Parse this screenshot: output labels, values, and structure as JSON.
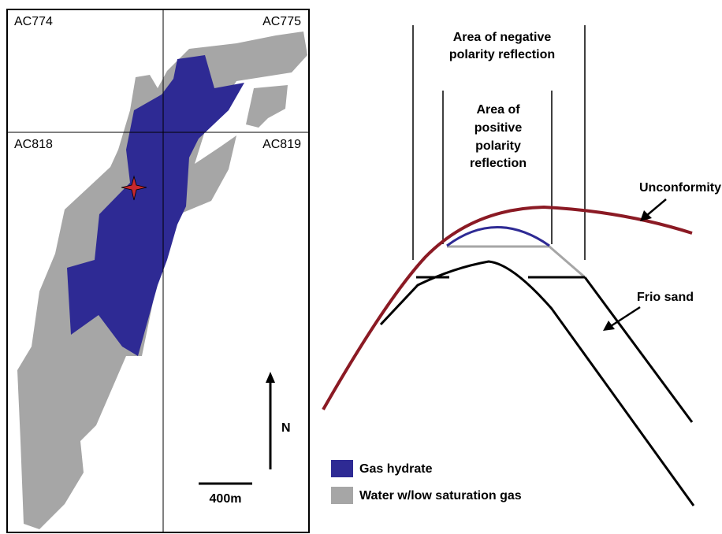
{
  "map": {
    "blocks": [
      "AC774",
      "AC775",
      "AC818",
      "AC819"
    ],
    "north": "N",
    "scale": "400m"
  },
  "section": {
    "negative_label": [
      "Area of negative",
      "polarity reflection"
    ],
    "positive_label": [
      "Area of",
      "positive",
      "polarity",
      "reflection"
    ],
    "unconformity": "Unconformity",
    "frio": "Frio sand"
  },
  "legend": [
    "Gas hydrate",
    "Water w/low saturation gas"
  ]
}
